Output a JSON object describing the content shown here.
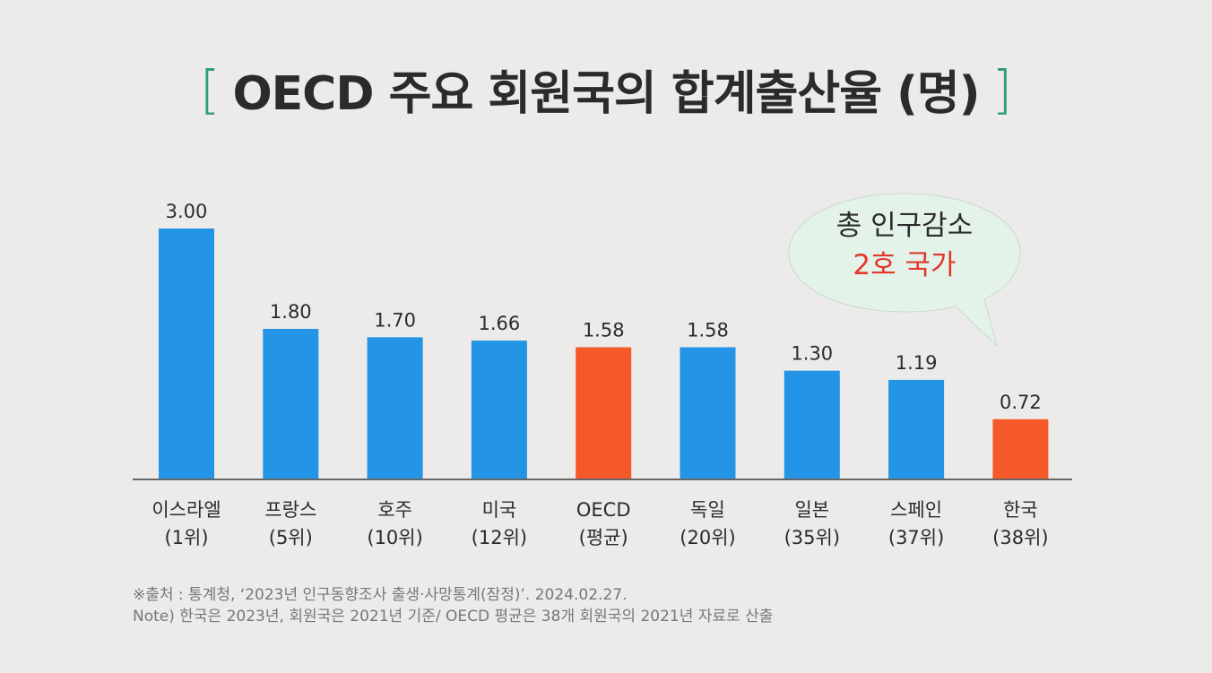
{
  "header": {
    "title": "OECD 주요 회원국의 합계출산율 (명)",
    "bracket_left": "[",
    "bracket_right": "]"
  },
  "colors": {
    "bar_default": "#2394e6",
    "bar_highlight": "#f5592a",
    "bracket": "#2f9c7f",
    "callout_red": "#e4372a"
  },
  "chart_data": {
    "type": "bar",
    "title": "OECD 주요 회원국의 합계출산율 (명)",
    "categories": [
      {
        "name": "이스라엘",
        "rank": "(1위)"
      },
      {
        "name": "프랑스",
        "rank": "(5위)"
      },
      {
        "name": "호주",
        "rank": "(10위)"
      },
      {
        "name": "미국",
        "rank": "(12위)"
      },
      {
        "name": "OECD",
        "rank": "(평균)"
      },
      {
        "name": "독일",
        "rank": "(20위)"
      },
      {
        "name": "일본",
        "rank": "(35위)"
      },
      {
        "name": "스페인",
        "rank": "(37위)"
      },
      {
        "name": "한국",
        "rank": "(38위)"
      }
    ],
    "values": [
      3.0,
      1.8,
      1.7,
      1.66,
      1.58,
      1.58,
      1.3,
      1.19,
      0.72
    ],
    "value_labels": [
      "3.00",
      "1.80",
      "1.70",
      "1.66",
      "1.58",
      "1.58",
      "1.30",
      "1.19",
      "0.72"
    ],
    "highlighted": [
      false,
      false,
      false,
      false,
      true,
      false,
      false,
      false,
      true
    ],
    "ylim": [
      0,
      3.0
    ],
    "grid": false,
    "legend": "none"
  },
  "callout": {
    "line1": "총 인구감소",
    "line2": "2호 국가"
  },
  "source": {
    "line1": "※출처 : 통계청, ‘2023년 인구동향조사 출생·사망통계(잠정)’. 2024.02.27.",
    "line2": "Note) 한국은 2023년, 회원국은 2021년 기준/ OECD 평균은 38개 회원국의 2021년 자료로 산출"
  }
}
